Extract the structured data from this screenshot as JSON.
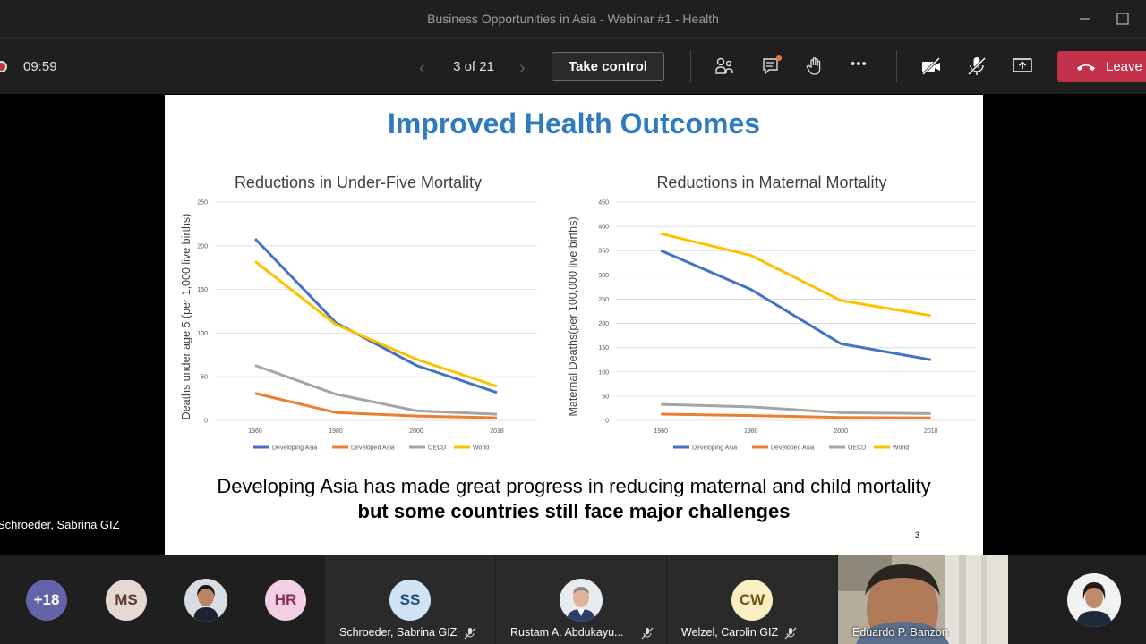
{
  "window": {
    "title": "Business Opportunities in Asia - Webinar #1 - Health"
  },
  "toolbar": {
    "timer": "09:59",
    "page_indicator": "3 of 21",
    "take_control_label": "Take control",
    "more_label": "•••",
    "leave_label": "Leave"
  },
  "slide": {
    "title": "Improved Health Outcomes",
    "caption_normal": "Developing Asia has made great progress in reducing maternal and child mortality ",
    "caption_bold": "but some countries still face major challenges",
    "slide_number": "3"
  },
  "presenter_label": "Schroeder, Sabrina GIZ",
  "colors": {
    "developing_asia": "#4472c4",
    "developed_asia": "#ed7d31",
    "oecd": "#a5a5a5",
    "world": "#ffc000",
    "leave": "#c4314b",
    "title": "#2f7bbd"
  },
  "chart_data": [
    {
      "type": "line",
      "title": "Reductions in Under-Five Mortality",
      "xlabel": "",
      "ylabel": "Deaths under age 5 (per 1,000 live births)",
      "x": [
        "1960",
        "1980",
        "2000",
        "2018"
      ],
      "ylim": [
        0,
        250
      ],
      "yticks": [
        "0",
        "50",
        "100",
        "150",
        "200",
        "250"
      ],
      "grid": true,
      "legend": "bottom",
      "series": [
        {
          "name": "Developing Asia",
          "color": "#4472c4",
          "values": [
            208,
            112,
            63,
            32
          ]
        },
        {
          "name": "Developed Asia",
          "color": "#ed7d31",
          "values": [
            31,
            9,
            5,
            3
          ]
        },
        {
          "name": "OECD",
          "color": "#a5a5a5",
          "values": [
            63,
            30,
            11,
            7
          ]
        },
        {
          "name": "World",
          "color": "#ffc000",
          "values": [
            182,
            110,
            70,
            39
          ]
        }
      ]
    },
    {
      "type": "line",
      "title": "Reductions in Maternal Mortality",
      "xlabel": "",
      "ylabel": "Maternal Deaths(per 100,000 live births)",
      "x": [
        "1960",
        "1980",
        "2000",
        "2018"
      ],
      "ylim": [
        0,
        450
      ],
      "yticks": [
        "0",
        "50",
        "100",
        "150",
        "200",
        "250",
        "300",
        "350",
        "400",
        "450"
      ],
      "grid": true,
      "legend": "bottom",
      "series": [
        {
          "name": "Developing Asia",
          "color": "#4472c4",
          "values": [
            350,
            270,
            158,
            125
          ]
        },
        {
          "name": "Developed Asia",
          "color": "#ed7d31",
          "values": [
            13,
            10,
            6,
            5
          ]
        },
        {
          "name": "OECD",
          "color": "#a5a5a5",
          "values": [
            33,
            28,
            16,
            14
          ]
        },
        {
          "name": "World",
          "color": "#ffc000",
          "values": [
            385,
            340,
            247,
            216
          ]
        }
      ]
    }
  ],
  "participants": [
    {
      "initials": "+18",
      "bg": "#6264a7",
      "fg": "#ffffff"
    },
    {
      "initials": "MS",
      "bg": "#e6d8d3",
      "fg": "#5c3d2e"
    },
    {
      "initials": "HR",
      "bg": "#f2cfe3",
      "fg": "#8a2b63"
    },
    {
      "initials": "SS",
      "name": "Schroeder, Sabrina GIZ",
      "bg": "#cfe3f5",
      "fg": "#1b4f7a"
    },
    {
      "name": "Rustam A. Abdukayu..."
    },
    {
      "initials": "CW",
      "name": "Welzel, Carolin GIZ",
      "bg": "#fbeec0",
      "fg": "#6b5313"
    },
    {
      "name": "Eduardo P. Banzon"
    }
  ]
}
